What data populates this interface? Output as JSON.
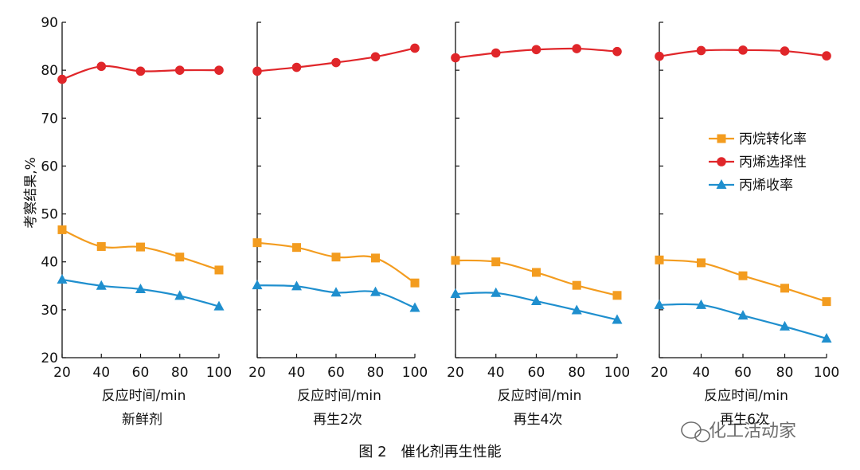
{
  "figure": {
    "caption": "图 2　催化剂再生性能",
    "watermark": "化工活动家",
    "ylabel": "考察结果,%"
  },
  "legend": {
    "placement": "right",
    "items": [
      "丙烷转化率",
      "丙烯选择性",
      "丙烯收率"
    ]
  },
  "colors": {
    "conversion": "#f39c1f",
    "selectivity": "#e0262a",
    "yield": "#1f8fce"
  },
  "chart_data": [
    {
      "type": "line",
      "title": "新鲜剂",
      "xlabel": "反应时间/min",
      "ylabel": "考察结果,%",
      "xlim": [
        20,
        100
      ],
      "ylim": [
        20,
        90
      ],
      "x": [
        20,
        40,
        60,
        80,
        100
      ],
      "series": [
        {
          "name": "丙烷转化率",
          "marker": "square",
          "values": [
            46.7,
            43.2,
            43.1,
            41.0,
            38.3
          ]
        },
        {
          "name": "丙烯选择性",
          "marker": "circle",
          "values": [
            78.1,
            80.8,
            79.8,
            80.0,
            80.0
          ]
        },
        {
          "name": "丙烯收率",
          "marker": "triangle",
          "values": [
            36.3,
            35.0,
            34.3,
            32.9,
            30.7
          ]
        }
      ]
    },
    {
      "type": "line",
      "title": "再生2次",
      "xlabel": "反应时间/min",
      "ylabel": "",
      "xlim": [
        20,
        100
      ],
      "ylim": [
        20,
        90
      ],
      "x": [
        20,
        40,
        60,
        80,
        100
      ],
      "series": [
        {
          "name": "丙烷转化率",
          "marker": "square",
          "values": [
            44.0,
            43.0,
            41.0,
            40.8,
            35.6
          ]
        },
        {
          "name": "丙烯选择性",
          "marker": "circle",
          "values": [
            79.8,
            80.6,
            81.6,
            82.8,
            84.6
          ]
        },
        {
          "name": "丙烯收率",
          "marker": "triangle",
          "values": [
            35.1,
            34.9,
            33.6,
            33.7,
            30.4
          ]
        }
      ]
    },
    {
      "type": "line",
      "title": "再生4次",
      "xlabel": "反应时间/min",
      "ylabel": "",
      "xlim": [
        20,
        100
      ],
      "ylim": [
        20,
        90
      ],
      "x": [
        20,
        40,
        60,
        80,
        100
      ],
      "series": [
        {
          "name": "丙烷转化率",
          "marker": "square",
          "values": [
            40.3,
            40.0,
            37.8,
            35.1,
            33.0
          ]
        },
        {
          "name": "丙烯选择性",
          "marker": "circle",
          "values": [
            82.6,
            83.6,
            84.3,
            84.5,
            83.9
          ]
        },
        {
          "name": "丙烯收率",
          "marker": "triangle",
          "values": [
            33.3,
            33.5,
            31.8,
            29.9,
            27.9
          ]
        }
      ]
    },
    {
      "type": "line",
      "title": "再生6次",
      "xlabel": "反应时间/min",
      "ylabel": "",
      "xlim": [
        20,
        100
      ],
      "ylim": [
        20,
        90
      ],
      "x": [
        20,
        40,
        60,
        80,
        100
      ],
      "series": [
        {
          "name": "丙烷转化率",
          "marker": "square",
          "values": [
            40.4,
            39.8,
            37.1,
            34.5,
            31.7
          ]
        },
        {
          "name": "丙烯选择性",
          "marker": "circle",
          "values": [
            82.9,
            84.1,
            84.2,
            84.0,
            83.0
          ]
        },
        {
          "name": "丙烯收率",
          "marker": "triangle",
          "values": [
            31.0,
            31.0,
            28.8,
            26.5,
            24.0
          ]
        }
      ]
    }
  ]
}
